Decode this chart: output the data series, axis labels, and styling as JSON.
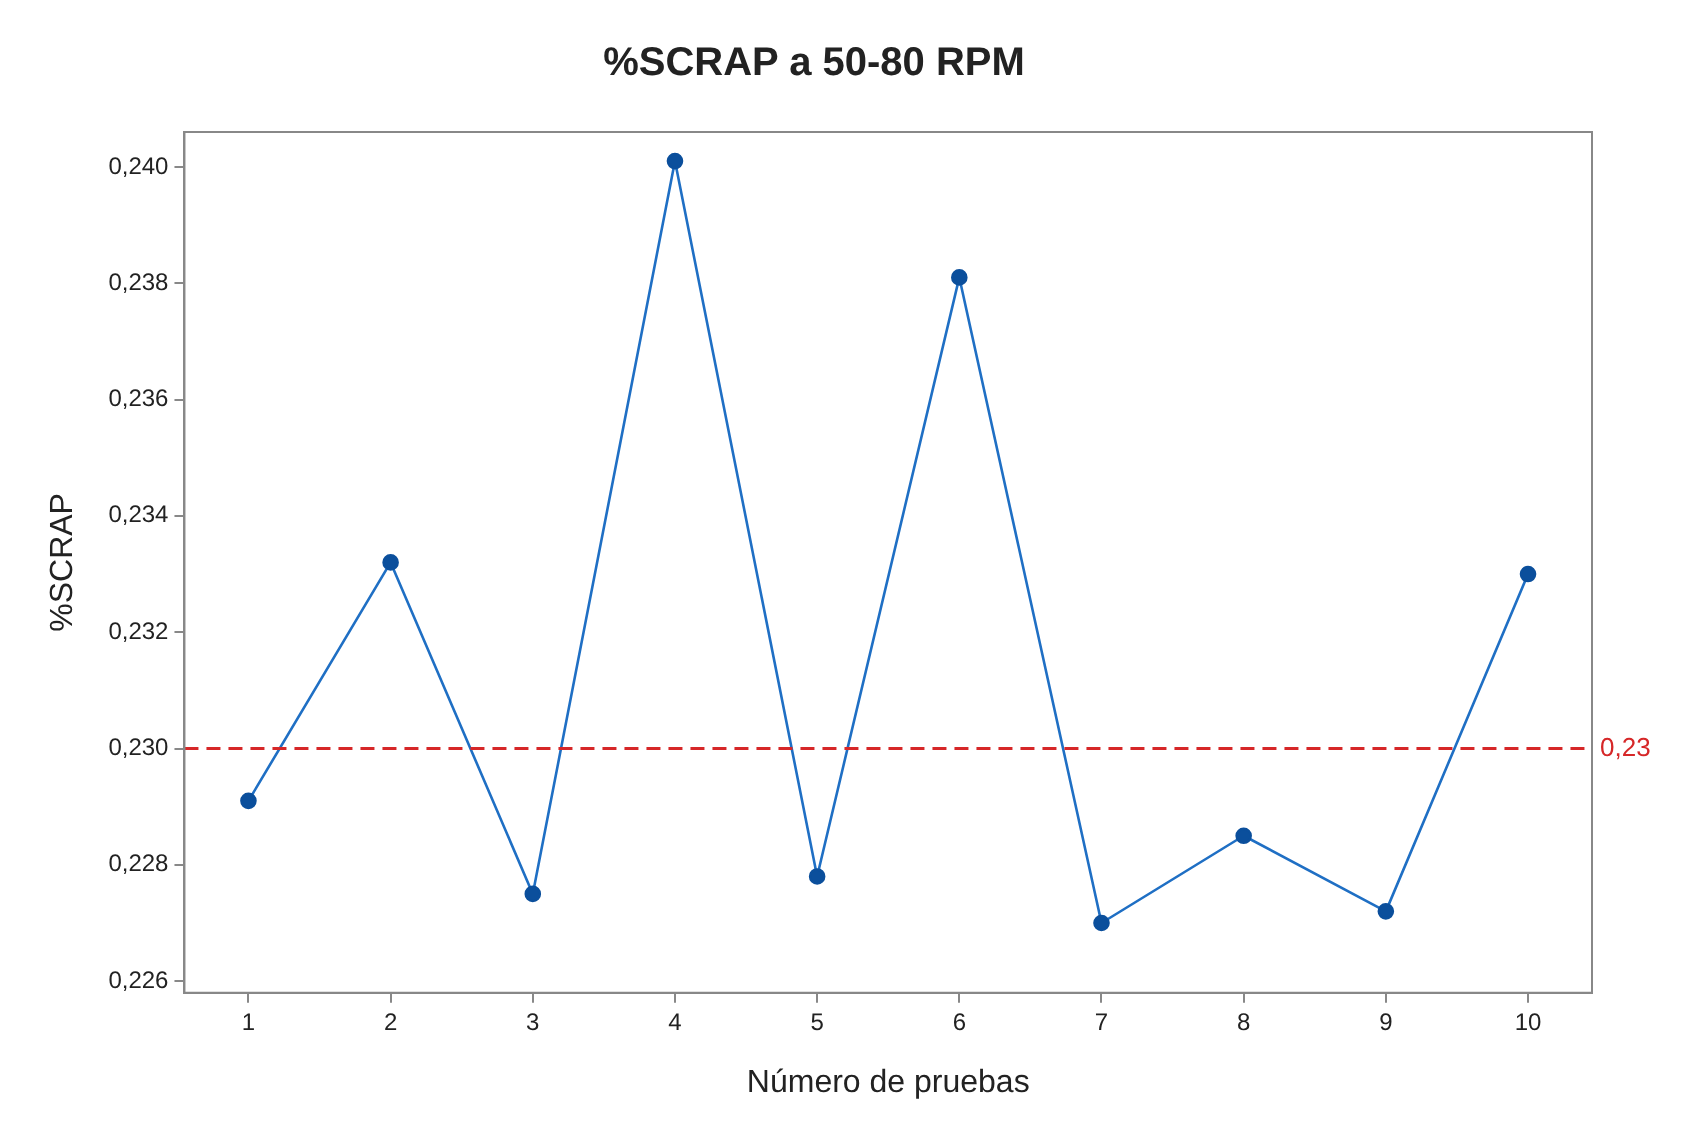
{
  "chart_data": {
    "type": "line",
    "title": "%SCRAP a 50-80 RPM",
    "xlabel": "Número de pruebas",
    "ylabel": "%SCRAP",
    "x": [
      1,
      2,
      3,
      4,
      5,
      6,
      7,
      8,
      9,
      10
    ],
    "series": [
      {
        "color": "#1f6fc4",
        "values": [
          0.2291,
          0.2332,
          0.2275,
          0.2401,
          0.2278,
          0.2381,
          0.227,
          0.2285,
          0.2272,
          0.233
        ]
      }
    ],
    "xlim": [
      0.55,
      10.45
    ],
    "xticks": [
      1,
      2,
      3,
      4,
      5,
      6,
      7,
      8,
      9,
      10
    ],
    "ylim": [
      0.2258,
      0.2406
    ],
    "yticks": [
      {
        "value": 0.226,
        "label": "0,226"
      },
      {
        "value": 0.228,
        "label": "0,228"
      },
      {
        "value": 0.23,
        "label": "0,230"
      },
      {
        "value": 0.232,
        "label": "0,232"
      },
      {
        "value": 0.234,
        "label": "0,234"
      },
      {
        "value": 0.236,
        "label": "0,236"
      },
      {
        "value": 0.238,
        "label": "0,238"
      },
      {
        "value": 0.24,
        "label": "0,240"
      }
    ],
    "ref_lines": [
      {
        "axis": "y",
        "value": 0.23,
        "label": "0,23",
        "color": "#d62728",
        "line_style": "dashed"
      }
    ],
    "grid": false,
    "legend": false,
    "marker": "circle",
    "line_style": "solid"
  }
}
